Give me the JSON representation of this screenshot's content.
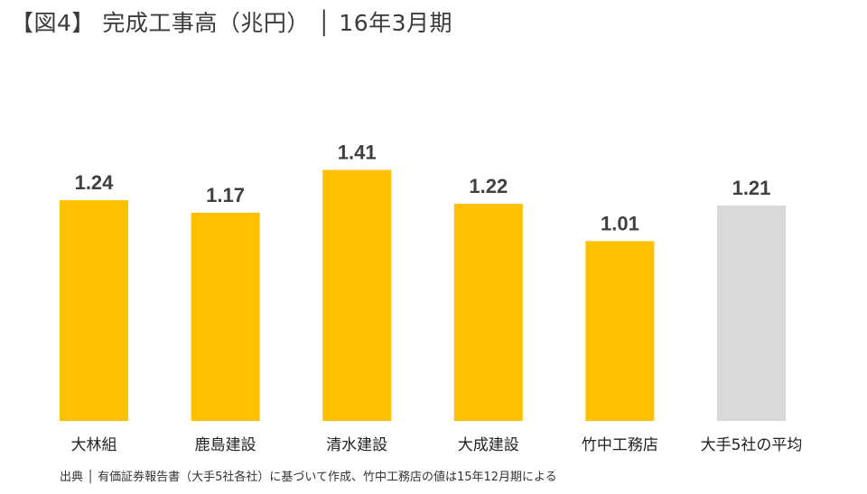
{
  "title": "【図4】 完成工事高（兆円） │ 16年3月期",
  "source": "出典 │ 有価証券報告書（大手5社各社）に基づいて作成、竹中工務店の値は15年12月期による",
  "colors": {
    "primary": "#FFC000",
    "average": "#D9D9D9"
  },
  "chart_data": {
    "type": "bar",
    "title": "完成工事高（兆円）",
    "categories": [
      "大林組",
      "鹿島建設",
      "清水建設",
      "大成建設",
      "竹中工務店",
      "大手5社の平均"
    ],
    "values": [
      1.24,
      1.17,
      1.41,
      1.22,
      1.01,
      1.21
    ],
    "value_labels": [
      "1.24",
      "1.17",
      "1.41",
      "1.22",
      "1.01",
      "1.21"
    ],
    "highlight": [
      false,
      false,
      false,
      false,
      false,
      true
    ],
    "ylim": [
      0,
      1.6
    ],
    "xlabel": "",
    "ylabel": "",
    "grid": false
  }
}
